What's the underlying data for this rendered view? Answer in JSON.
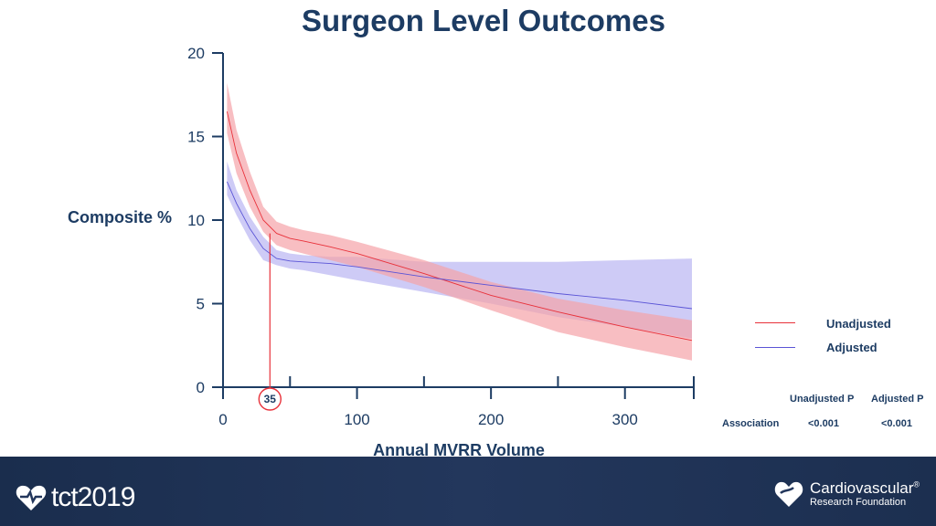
{
  "slide": {
    "title": "Surgeon Level Outcomes"
  },
  "chart_data": {
    "type": "line",
    "title": "Surgeon Level Outcomes",
    "xlabel": "Annual MVRR Volume",
    "ylabel": "Composite %",
    "xlim": [
      0,
      350
    ],
    "ylim": [
      0,
      20
    ],
    "x_ticks": [
      0,
      100,
      200,
      300
    ],
    "y_ticks": [
      0,
      5,
      10,
      15,
      20
    ],
    "x_minor_ticks": [
      50,
      150,
      250
    ],
    "annotation": {
      "x": 35,
      "y": 9.2,
      "label": "35"
    },
    "series": [
      {
        "name": "Unadjusted",
        "color": "#e8313a",
        "band_color": "#f5a3a8",
        "x": [
          3,
          10,
          20,
          30,
          40,
          50,
          60,
          80,
          100,
          150,
          200,
          250,
          300,
          350
        ],
        "y": [
          16.5,
          14.0,
          11.8,
          10.0,
          9.2,
          8.9,
          8.75,
          8.4,
          8.0,
          6.8,
          5.5,
          4.5,
          3.6,
          2.8
        ],
        "lower": [
          15.2,
          12.8,
          10.8,
          9.3,
          8.5,
          8.2,
          8.0,
          7.6,
          7.2,
          6.0,
          4.6,
          3.3,
          2.4,
          1.6
        ],
        "upper": [
          18.2,
          15.4,
          12.9,
          10.8,
          9.9,
          9.6,
          9.4,
          9.1,
          8.7,
          7.6,
          6.3,
          5.3,
          4.6,
          4.0
        ]
      },
      {
        "name": "Adjusted",
        "color": "#5a54d6",
        "band_color": "#c5c2f5",
        "x": [
          3,
          10,
          20,
          30,
          40,
          50,
          60,
          80,
          100,
          150,
          200,
          250,
          300,
          350
        ],
        "y": [
          12.3,
          11.0,
          9.5,
          8.3,
          7.7,
          7.55,
          7.5,
          7.4,
          7.2,
          6.6,
          6.1,
          5.6,
          5.2,
          4.7
        ],
        "lower": [
          11.5,
          10.3,
          8.8,
          7.6,
          7.3,
          7.1,
          7.0,
          6.7,
          6.4,
          5.7,
          5.0,
          4.2,
          3.6,
          2.9
        ],
        "upper": [
          13.5,
          11.8,
          10.2,
          9.0,
          8.2,
          8.0,
          7.9,
          7.8,
          7.8,
          7.5,
          7.5,
          7.5,
          7.6,
          7.7
        ]
      }
    ],
    "p_values": {
      "row_label": "Association",
      "headers": [
        "Unadjusted P",
        "Adjusted P"
      ],
      "values": [
        "<0.001",
        "<0.001"
      ]
    }
  },
  "footer": {
    "tct_logo_text": "tct2019",
    "crf_name": "Cardiovascular",
    "crf_sub": "Research Foundation",
    "crf_mark": "®"
  }
}
